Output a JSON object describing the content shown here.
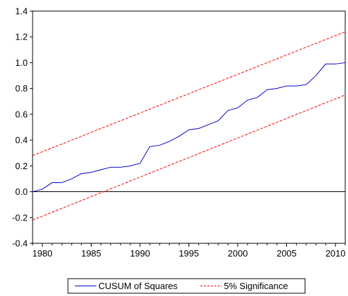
{
  "chart_data": {
    "type": "line",
    "title": "",
    "xlabel": "",
    "ylabel": "",
    "xlim": [
      1979,
      2011
    ],
    "ylim": [
      -0.4,
      1.4
    ],
    "x_ticks": [
      1980,
      1985,
      1990,
      1995,
      2000,
      2005,
      2010
    ],
    "y_ticks": [
      -0.4,
      -0.2,
      0.0,
      0.2,
      0.4,
      0.6,
      0.8,
      1.0,
      1.2,
      1.4
    ],
    "x_tick_labels": [
      "1980",
      "1985",
      "1990",
      "1995",
      "2000",
      "2005",
      "2010"
    ],
    "y_tick_labels": [
      "-0.4",
      "-0.2",
      "0.0",
      "0.2",
      "0.4",
      "0.6",
      "0.8",
      "1.0",
      "1.2",
      "1.4"
    ],
    "zero_line": true,
    "grid": false,
    "legend_position": "bottom-center",
    "series": [
      {
        "name": "CUSUM of Squares",
        "color": "#0000cc",
        "style": "solid",
        "x": [
          1979,
          1980,
          1981,
          1982,
          1983,
          1984,
          1985,
          1986,
          1987,
          1988,
          1989,
          1990,
          1991,
          1992,
          1993,
          1994,
          1995,
          1996,
          1997,
          1998,
          1999,
          2000,
          2001,
          2002,
          2003,
          2004,
          2005,
          2006,
          2007,
          2008,
          2009,
          2010,
          2011
        ],
        "y": [
          0.0,
          0.02,
          0.07,
          0.07,
          0.1,
          0.14,
          0.15,
          0.17,
          0.19,
          0.19,
          0.2,
          0.22,
          0.35,
          0.36,
          0.39,
          0.43,
          0.48,
          0.49,
          0.52,
          0.55,
          0.63,
          0.65,
          0.71,
          0.73,
          0.79,
          0.8,
          0.82,
          0.82,
          0.83,
          0.9,
          0.99,
          0.99,
          1.0
        ]
      },
      {
        "name": "5% Significance",
        "color": "#ff0000",
        "style": "dashed",
        "x": [
          1979,
          2011
        ],
        "y": [
          0.28,
          1.24
        ]
      },
      {
        "name": "",
        "color": "#ff0000",
        "style": "dashed",
        "x": [
          1979,
          2011
        ],
        "y": [
          -0.22,
          0.75
        ]
      }
    ]
  }
}
